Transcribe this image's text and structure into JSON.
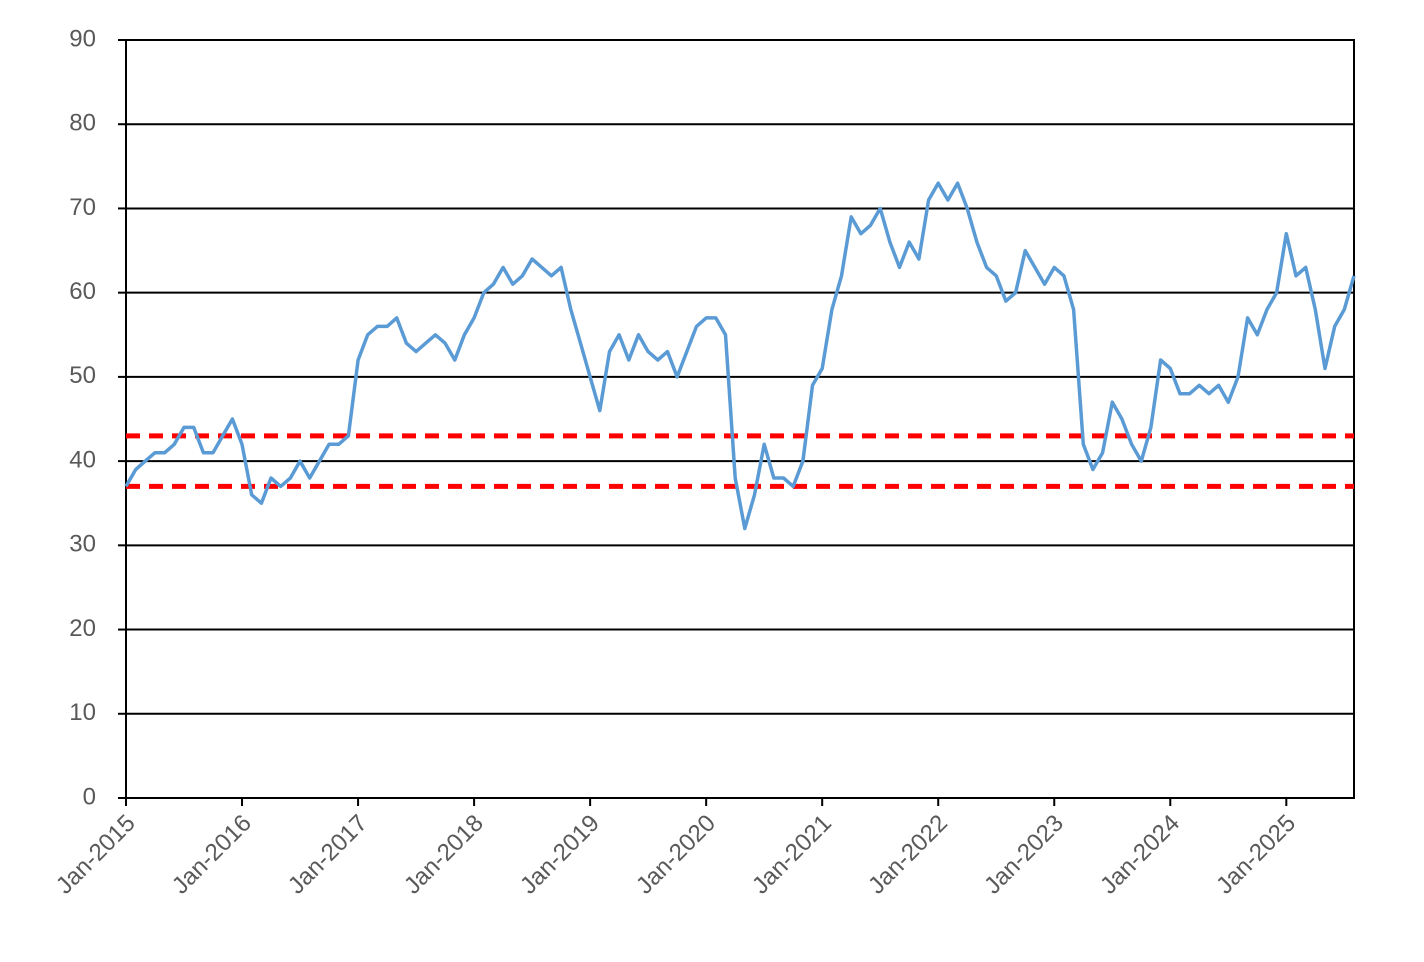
{
  "chart_data": {
    "type": "line",
    "x": [
      "2015-01",
      "2015-02",
      "2015-03",
      "2015-04",
      "2015-05",
      "2015-06",
      "2015-07",
      "2015-08",
      "2015-09",
      "2015-10",
      "2015-11",
      "2015-12",
      "2016-01",
      "2016-02",
      "2016-03",
      "2016-04",
      "2016-05",
      "2016-06",
      "2016-07",
      "2016-08",
      "2016-09",
      "2016-10",
      "2016-11",
      "2016-12",
      "2017-01",
      "2017-02",
      "2017-03",
      "2017-04",
      "2017-05",
      "2017-06",
      "2017-07",
      "2017-08",
      "2017-09",
      "2017-10",
      "2017-11",
      "2017-12",
      "2018-01",
      "2018-02",
      "2018-03",
      "2018-04",
      "2018-05",
      "2018-06",
      "2018-07",
      "2018-08",
      "2018-09",
      "2018-10",
      "2018-11",
      "2018-12",
      "2019-01",
      "2019-02",
      "2019-03",
      "2019-04",
      "2019-05",
      "2019-06",
      "2019-07",
      "2019-08",
      "2019-09",
      "2019-10",
      "2019-11",
      "2019-12",
      "2020-01",
      "2020-02",
      "2020-03",
      "2020-04",
      "2020-05",
      "2020-06",
      "2020-07",
      "2020-08",
      "2020-09",
      "2020-10",
      "2020-11",
      "2020-12",
      "2021-01",
      "2021-02",
      "2021-03",
      "2021-04",
      "2021-05",
      "2021-06",
      "2021-07",
      "2021-08",
      "2021-09",
      "2021-10",
      "2021-11",
      "2021-12",
      "2022-01",
      "2022-02",
      "2022-03",
      "2022-04",
      "2022-05",
      "2022-06",
      "2022-07",
      "2022-08",
      "2022-09",
      "2022-10",
      "2022-11",
      "2022-12",
      "2023-01",
      "2023-02",
      "2023-03",
      "2023-04",
      "2023-05",
      "2023-06",
      "2023-07",
      "2023-08",
      "2023-09",
      "2023-10",
      "2023-11",
      "2023-12",
      "2024-01",
      "2024-02",
      "2024-03",
      "2024-04",
      "2024-05",
      "2024-06",
      "2024-07",
      "2024-08",
      "2024-09",
      "2024-10",
      "2024-11",
      "2024-12",
      "2025-01",
      "2025-02",
      "2025-03",
      "2025-04",
      "2025-05",
      "2025-06",
      "2025-07",
      "2025-08"
    ],
    "series": [
      {
        "color": "#5b9bd5",
        "values": [
          37,
          39,
          40,
          41,
          41,
          42,
          44,
          44,
          41,
          41,
          43,
          45,
          42,
          36,
          35,
          38,
          37,
          38,
          40,
          38,
          40,
          42,
          42,
          43,
          52,
          55,
          56,
          56,
          57,
          54,
          53,
          54,
          55,
          54,
          52,
          55,
          57,
          60,
          61,
          63,
          61,
          62,
          64,
          63,
          62,
          63,
          58,
          54,
          50,
          46,
          53,
          55,
          52,
          55,
          53,
          52,
          53,
          50,
          53,
          56,
          57,
          57,
          55,
          38,
          32,
          36,
          42,
          38,
          38,
          37,
          40,
          49,
          51,
          58,
          62,
          69,
          67,
          68,
          70,
          66,
          63,
          66,
          64,
          71,
          73,
          71,
          73,
          70,
          66,
          63,
          62,
          59,
          60,
          65,
          63,
          61,
          63,
          62,
          58,
          42,
          39,
          41,
          47,
          45,
          42,
          40,
          44,
          52,
          51,
          48,
          48,
          49,
          48,
          49,
          47,
          50,
          57,
          55,
          58,
          60,
          67,
          62,
          63,
          58,
          51,
          56,
          58,
          62
        ]
      }
    ],
    "reference_lines": [
      {
        "value": 43,
        "color": "#ff0000"
      },
      {
        "value": 37,
        "color": "#ff0000"
      }
    ],
    "xlim": [
      "2015-01",
      "2025-08"
    ],
    "xticks": [
      {
        "value": "2015-01",
        "label": "Jan-2015"
      },
      {
        "value": "2016-01",
        "label": "Jan-2016"
      },
      {
        "value": "2017-01",
        "label": "Jan-2017"
      },
      {
        "value": "2018-01",
        "label": "Jan-2018"
      },
      {
        "value": "2019-01",
        "label": "Jan-2019"
      },
      {
        "value": "2020-01",
        "label": "Jan-2020"
      },
      {
        "value": "2021-01",
        "label": "Jan-2021"
      },
      {
        "value": "2022-01",
        "label": "Jan-2022"
      },
      {
        "value": "2023-01",
        "label": "Jan-2023"
      },
      {
        "value": "2024-01",
        "label": "Jan-2024"
      },
      {
        "value": "2025-01",
        "label": "Jan-2025"
      }
    ],
    "ylim": [
      0,
      90
    ],
    "yticks": [
      0,
      10,
      20,
      30,
      40,
      50,
      60,
      70,
      80,
      90
    ],
    "grid": true
  }
}
